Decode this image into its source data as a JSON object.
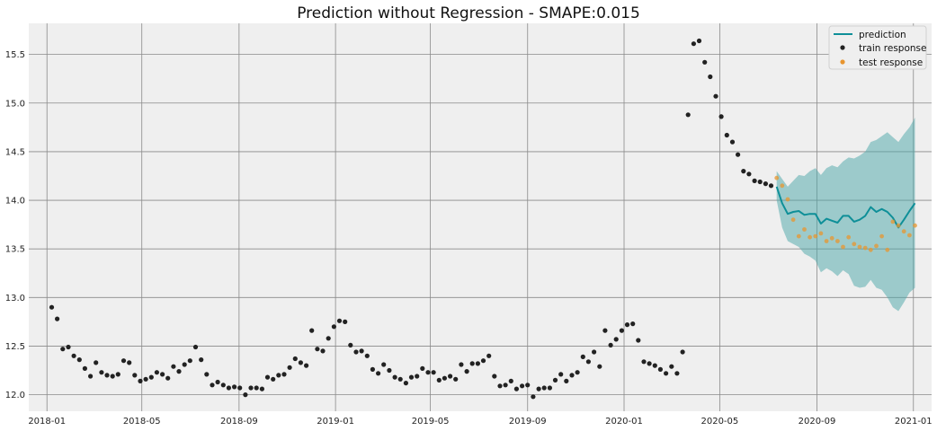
{
  "chart_data": {
    "type": "scatter",
    "title": "Prediction without Regression - SMAPE:0.015",
    "xlabel": "",
    "ylabel": "",
    "xlim": [
      "2017-12-09",
      "2021-01-24"
    ],
    "ylim": [
      11.83,
      15.82
    ],
    "grid": true,
    "legend_position": "top-right",
    "x_ticks": [
      "2018-01",
      "2018-05",
      "2018-09",
      "2019-01",
      "2019-05",
      "2019-09",
      "2020-01",
      "2020-05",
      "2020-09",
      "2021-01"
    ],
    "y_ticks": [
      "12.0",
      "12.5",
      "13.0",
      "13.5",
      "14.0",
      "14.5",
      "15.0",
      "15.5"
    ],
    "colors": {
      "plot_background": "#efefef",
      "grid": "#8a8a8a",
      "prediction": "#0e8f98",
      "band": "#4aa5a8",
      "train": "#222222",
      "test": "#e8952f"
    },
    "series": [
      {
        "name": "train response",
        "kind": "scatter",
        "x": [
          "2018-01-07",
          "2018-01-14",
          "2018-01-21",
          "2018-01-28",
          "2018-02-04",
          "2018-02-11",
          "2018-02-18",
          "2018-02-25",
          "2018-03-04",
          "2018-03-11",
          "2018-03-18",
          "2018-03-25",
          "2018-04-01",
          "2018-04-08",
          "2018-04-15",
          "2018-04-22",
          "2018-04-29",
          "2018-05-06",
          "2018-05-13",
          "2018-05-20",
          "2018-05-27",
          "2018-06-03",
          "2018-06-10",
          "2018-06-17",
          "2018-06-24",
          "2018-07-01",
          "2018-07-08",
          "2018-07-15",
          "2018-07-22",
          "2018-07-29",
          "2018-08-05",
          "2018-08-12",
          "2018-08-19",
          "2018-08-26",
          "2018-09-02",
          "2018-09-09",
          "2018-09-16",
          "2018-09-23",
          "2018-09-30",
          "2018-10-07",
          "2018-10-14",
          "2018-10-21",
          "2018-10-28",
          "2018-11-04",
          "2018-11-11",
          "2018-11-18",
          "2018-11-25",
          "2018-12-02",
          "2018-12-09",
          "2018-12-16",
          "2018-12-23",
          "2018-12-30",
          "2019-01-06",
          "2019-01-13",
          "2019-01-20",
          "2019-01-27",
          "2019-02-03",
          "2019-02-10",
          "2019-02-17",
          "2019-02-24",
          "2019-03-03",
          "2019-03-10",
          "2019-03-17",
          "2019-03-24",
          "2019-03-31",
          "2019-04-07",
          "2019-04-14",
          "2019-04-21",
          "2019-04-28",
          "2019-05-05",
          "2019-05-12",
          "2019-05-19",
          "2019-05-26",
          "2019-06-02",
          "2019-06-09",
          "2019-06-16",
          "2019-06-23",
          "2019-06-30",
          "2019-07-07",
          "2019-07-14",
          "2019-07-21",
          "2019-07-28",
          "2019-08-04",
          "2019-08-11",
          "2019-08-18",
          "2019-08-25",
          "2019-09-01",
          "2019-09-08",
          "2019-09-15",
          "2019-09-22",
          "2019-09-29",
          "2019-10-06",
          "2019-10-13",
          "2019-10-20",
          "2019-10-27",
          "2019-11-03",
          "2019-11-10",
          "2019-11-17",
          "2019-11-24",
          "2019-12-01",
          "2019-12-08",
          "2019-12-15",
          "2019-12-22",
          "2019-12-29",
          "2020-01-05",
          "2020-01-12",
          "2020-01-19",
          "2020-01-26",
          "2020-02-02",
          "2020-02-09",
          "2020-02-16",
          "2020-02-23",
          "2020-03-01",
          "2020-03-08",
          "2020-03-15",
          "2020-03-22",
          "2020-03-29",
          "2020-04-05",
          "2020-04-12",
          "2020-04-19",
          "2020-04-26",
          "2020-05-03",
          "2020-05-10",
          "2020-05-17",
          "2020-05-24",
          "2020-05-31",
          "2020-06-07",
          "2020-06-14",
          "2020-06-21",
          "2020-06-28",
          "2020-07-05"
        ],
        "y": [
          12.9,
          12.78,
          12.47,
          12.49,
          12.4,
          12.36,
          12.27,
          12.19,
          12.33,
          12.23,
          12.2,
          12.19,
          12.21,
          12.35,
          12.33,
          12.2,
          12.14,
          12.16,
          12.18,
          12.23,
          12.21,
          12.17,
          12.29,
          12.24,
          12.31,
          12.35,
          12.49,
          12.36,
          12.21,
          12.1,
          12.13,
          12.1,
          12.07,
          12.08,
          12.07,
          12.0,
          12.07,
          12.07,
          12.06,
          12.18,
          12.16,
          12.2,
          12.21,
          12.28,
          12.37,
          12.33,
          12.3,
          12.66,
          12.47,
          12.45,
          12.58,
          12.7,
          12.76,
          12.75,
          12.51,
          12.44,
          12.45,
          12.4,
          12.26,
          12.22,
          12.31,
          12.25,
          12.18,
          12.16,
          12.12,
          12.18,
          12.19,
          12.27,
          12.23,
          12.23,
          12.15,
          12.17,
          12.19,
          12.16,
          12.31,
          12.24,
          12.32,
          12.32,
          12.35,
          12.4,
          12.19,
          12.09,
          12.1,
          12.14,
          12.06,
          12.09,
          12.1,
          11.98,
          12.06,
          12.07,
          12.07,
          12.15,
          12.21,
          12.14,
          12.2,
          12.23,
          12.39,
          12.34,
          12.44,
          12.29,
          12.66,
          12.51,
          12.57,
          12.66,
          12.72,
          12.73,
          12.56,
          12.34,
          12.32,
          12.3,
          12.26,
          12.22,
          12.29,
          12.22,
          12.44,
          14.88,
          15.61,
          15.64,
          15.42,
          15.27,
          15.07,
          14.86,
          14.67,
          14.6,
          14.47,
          14.3,
          14.27,
          14.2,
          14.19,
          14.17,
          14.15
        ]
      },
      {
        "name": "test response",
        "kind": "scatter",
        "x": [
          "2020-07-12",
          "2020-07-19",
          "2020-07-26",
          "2020-08-02",
          "2020-08-09",
          "2020-08-16",
          "2020-08-23",
          "2020-08-30",
          "2020-09-06",
          "2020-09-13",
          "2020-09-20",
          "2020-09-27",
          "2020-10-04",
          "2020-10-11",
          "2020-10-18",
          "2020-10-25",
          "2020-11-01",
          "2020-11-08",
          "2020-11-15",
          "2020-11-22",
          "2020-11-29",
          "2020-12-06",
          "2020-12-13",
          "2020-12-20",
          "2020-12-27",
          "2021-01-03"
        ],
        "y": [
          14.23,
          14.15,
          14.01,
          13.8,
          13.63,
          13.7,
          13.62,
          13.63,
          13.66,
          13.58,
          13.61,
          13.58,
          13.52,
          13.62,
          13.55,
          13.52,
          13.51,
          13.49,
          13.53,
          13.63,
          13.49,
          13.78,
          13.74,
          13.68,
          13.64,
          13.74
        ]
      },
      {
        "name": "prediction",
        "kind": "line",
        "x": [
          "2020-07-12",
          "2020-07-19",
          "2020-07-26",
          "2020-08-02",
          "2020-08-09",
          "2020-08-16",
          "2020-08-23",
          "2020-08-30",
          "2020-09-06",
          "2020-09-13",
          "2020-09-20",
          "2020-09-27",
          "2020-10-04",
          "2020-10-11",
          "2020-10-18",
          "2020-10-25",
          "2020-11-01",
          "2020-11-08",
          "2020-11-15",
          "2020-11-22",
          "2020-11-29",
          "2020-12-06",
          "2020-12-13",
          "2020-12-20",
          "2020-12-27",
          "2021-01-03"
        ],
        "y": [
          14.14,
          13.97,
          13.86,
          13.88,
          13.89,
          13.85,
          13.86,
          13.86,
          13.76,
          13.81,
          13.79,
          13.77,
          13.84,
          13.84,
          13.78,
          13.8,
          13.84,
          13.93,
          13.88,
          13.91,
          13.88,
          13.82,
          13.72,
          13.8,
          13.89,
          13.97
        ],
        "lower": [
          14.0,
          13.72,
          13.58,
          13.55,
          13.52,
          13.45,
          13.42,
          13.38,
          13.26,
          13.3,
          13.27,
          13.22,
          13.28,
          13.24,
          13.12,
          13.1,
          13.11,
          13.18,
          13.1,
          13.08,
          13.0,
          12.9,
          12.86,
          12.95,
          13.05,
          13.1
        ],
        "upper": [
          14.3,
          14.22,
          14.14,
          14.2,
          14.26,
          14.25,
          14.3,
          14.33,
          14.26,
          14.33,
          14.36,
          14.34,
          14.4,
          14.44,
          14.43,
          14.46,
          14.5,
          14.6,
          14.62,
          14.66,
          14.7,
          14.65,
          14.6,
          14.68,
          14.75,
          14.85
        ]
      }
    ]
  }
}
